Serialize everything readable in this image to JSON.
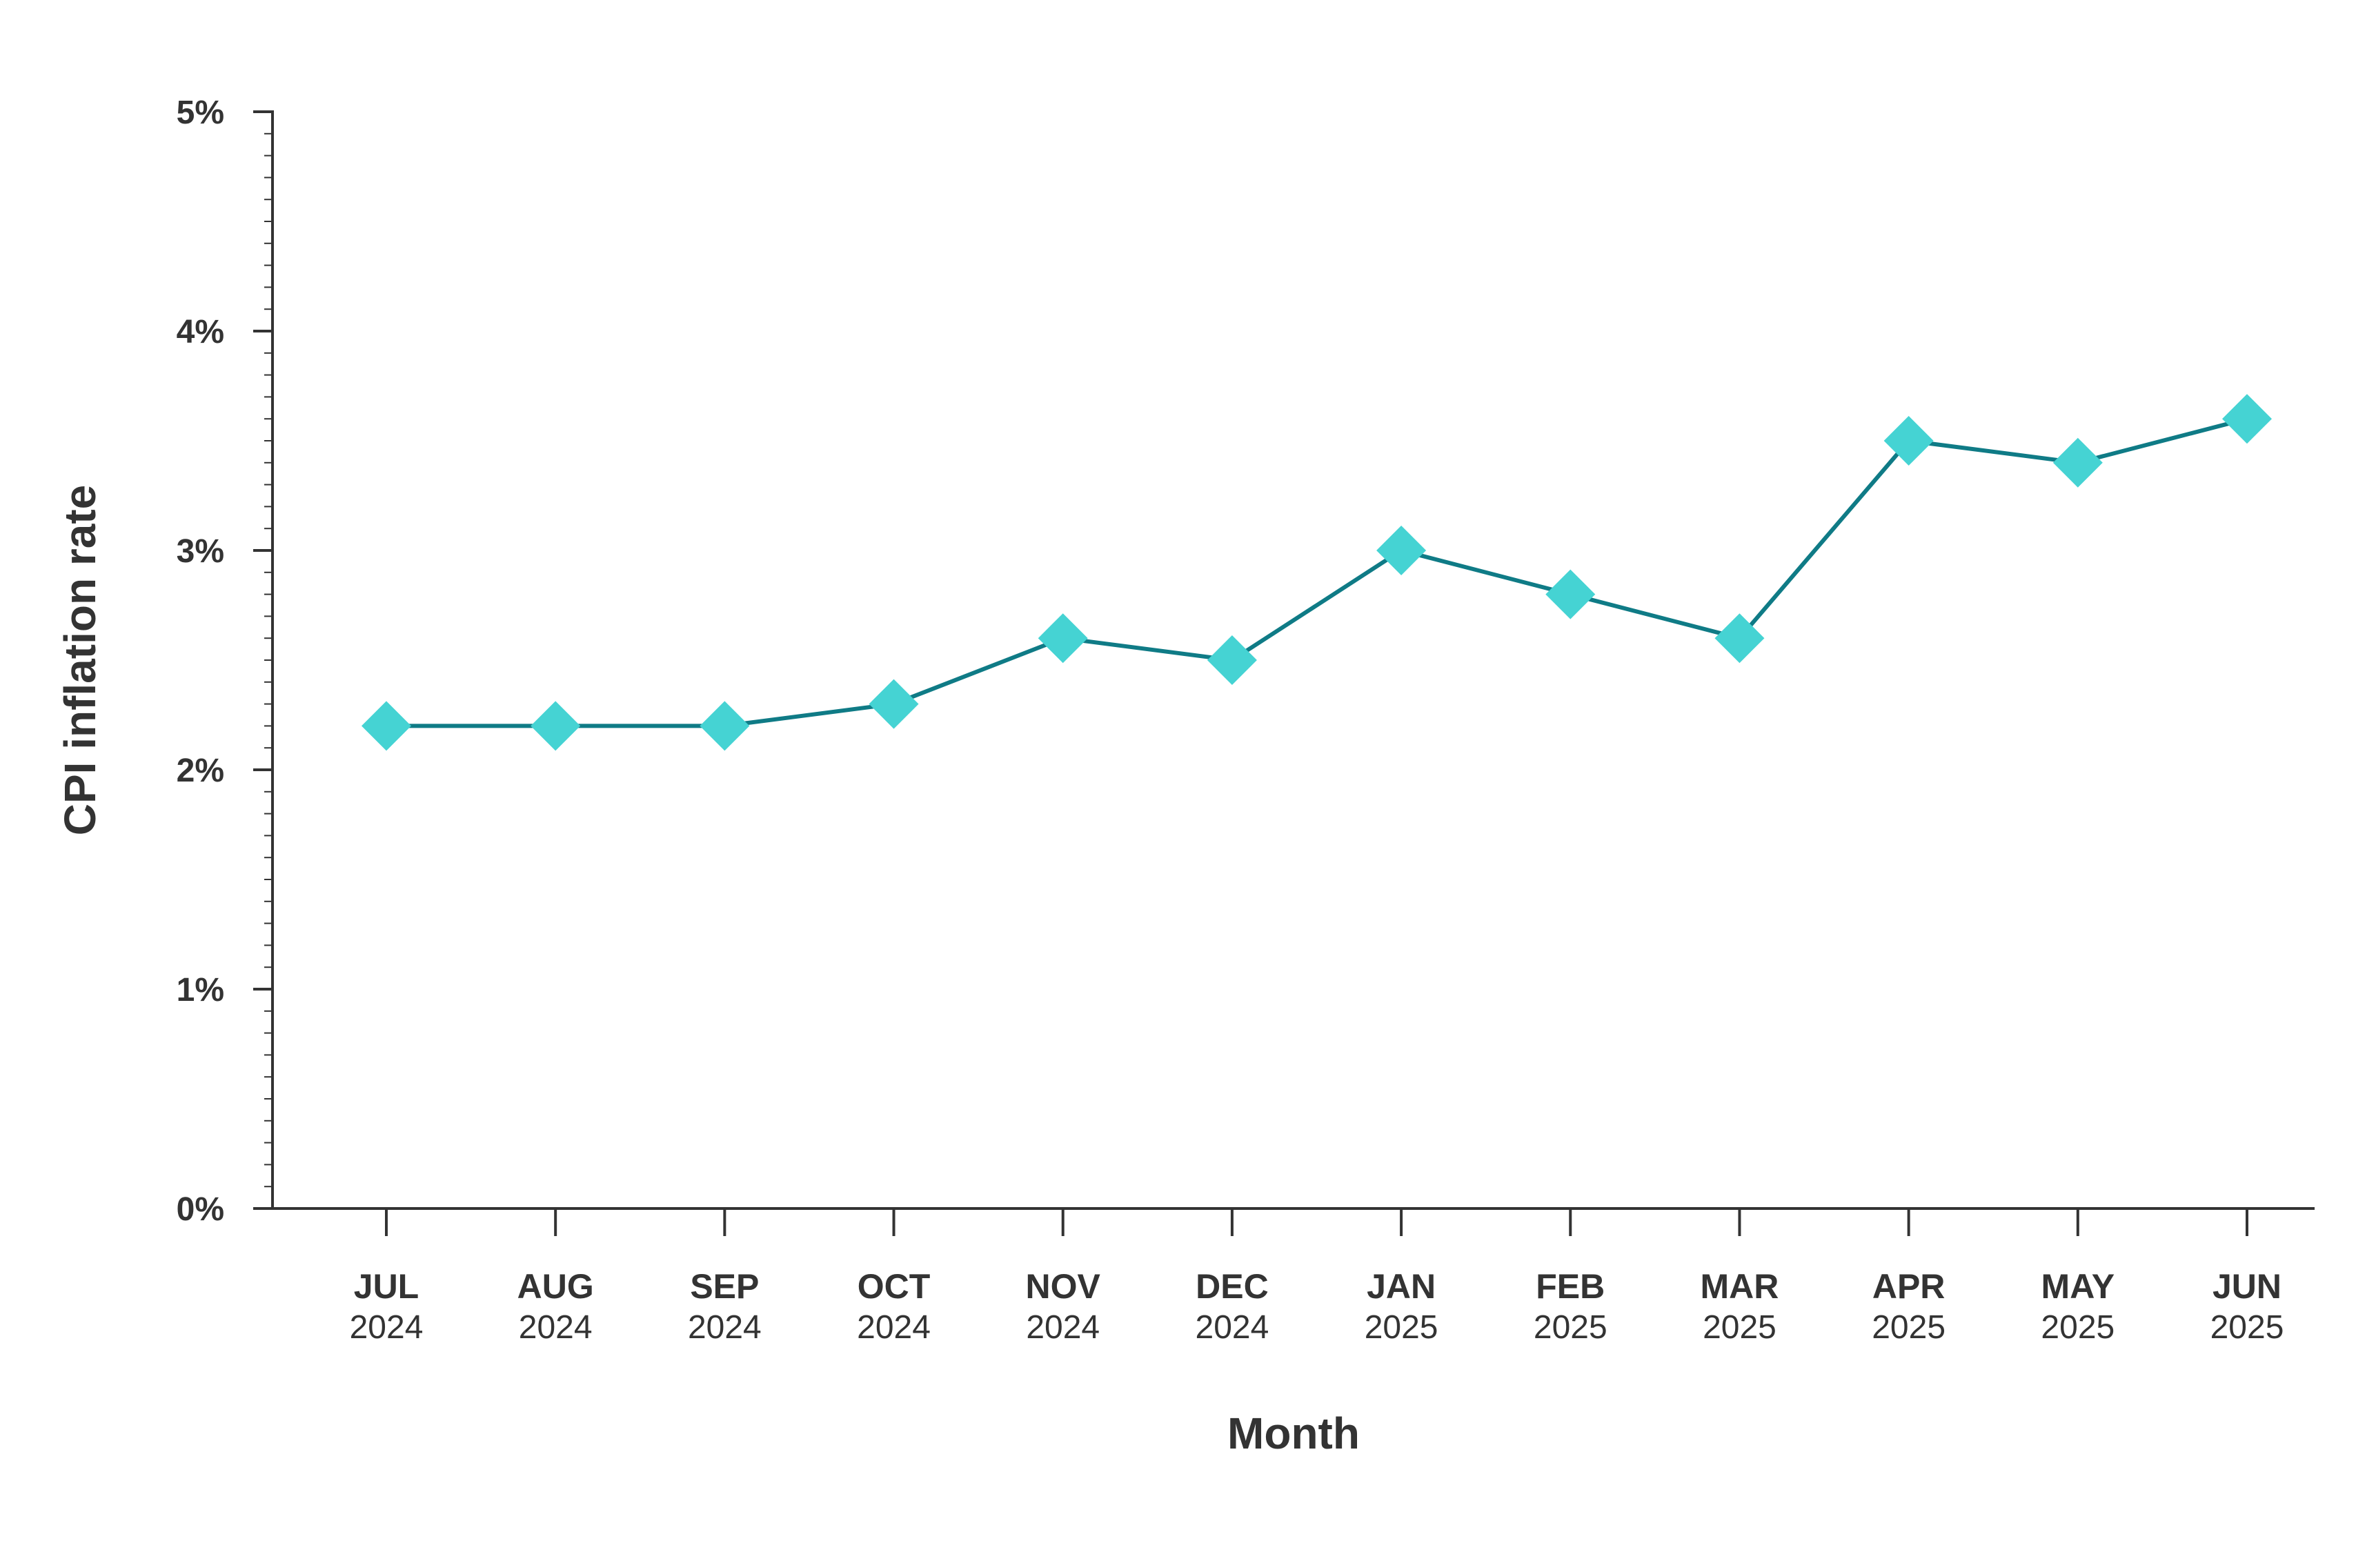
{
  "chart_data": {
    "type": "line",
    "title": "",
    "xlabel": "Month",
    "ylabel": "CPI inflation rate",
    "categories": [
      {
        "month": "JUL",
        "year": "2024"
      },
      {
        "month": "AUG",
        "year": "2024"
      },
      {
        "month": "SEP",
        "year": "2024"
      },
      {
        "month": "OCT",
        "year": "2024"
      },
      {
        "month": "NOV",
        "year": "2024"
      },
      {
        "month": "DEC",
        "year": "2024"
      },
      {
        "month": "JAN",
        "year": "2025"
      },
      {
        "month": "FEB",
        "year": "2025"
      },
      {
        "month": "MAR",
        "year": "2025"
      },
      {
        "month": "APR",
        "year": "2025"
      },
      {
        "month": "MAY",
        "year": "2025"
      },
      {
        "month": "JUN",
        "year": "2025"
      }
    ],
    "series": [
      {
        "values": [
          2.2,
          2.2,
          2.2,
          2.3,
          2.6,
          2.5,
          3.0,
          2.8,
          2.6,
          3.5,
          3.4,
          3.6
        ],
        "line_color": "#0f7b86",
        "marker_color": "#45d3d3",
        "marker": "diamond"
      }
    ],
    "ylim": [
      0,
      5
    ],
    "y_ticks": [
      {
        "value": 0,
        "label": "0%"
      },
      {
        "value": 1,
        "label": "1%"
      },
      {
        "value": 2,
        "label": "2%"
      },
      {
        "value": 3,
        "label": "3%"
      },
      {
        "value": 4,
        "label": "4%"
      },
      {
        "value": 5,
        "label": "5%"
      }
    ],
    "y_minor_step": 0.1,
    "grid": false,
    "legend": "none"
  }
}
